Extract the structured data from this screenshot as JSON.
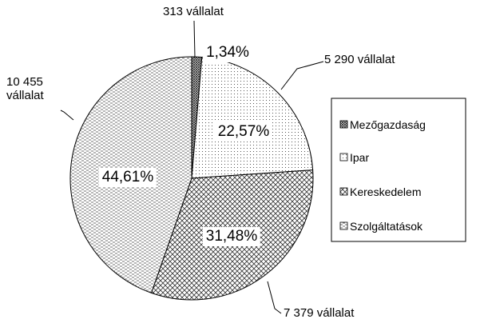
{
  "chart_data": {
    "type": "pie",
    "categories": [
      "Mezőgazdaság",
      "Ipar",
      "Kereskedelem",
      "Szolgáltatások"
    ],
    "values": [
      1.34,
      22.57,
      31.48,
      44.61
    ],
    "value_labels": [
      "1,34%",
      "22,57%",
      "31,48%",
      "44,61%"
    ],
    "counts": [
      313,
      5290,
      7379,
      10455
    ],
    "count_labels": [
      "313 vállalat",
      "5 290 vállalat",
      "7 379 vállalat",
      "10 455 vállalat"
    ],
    "legend": "right"
  }
}
